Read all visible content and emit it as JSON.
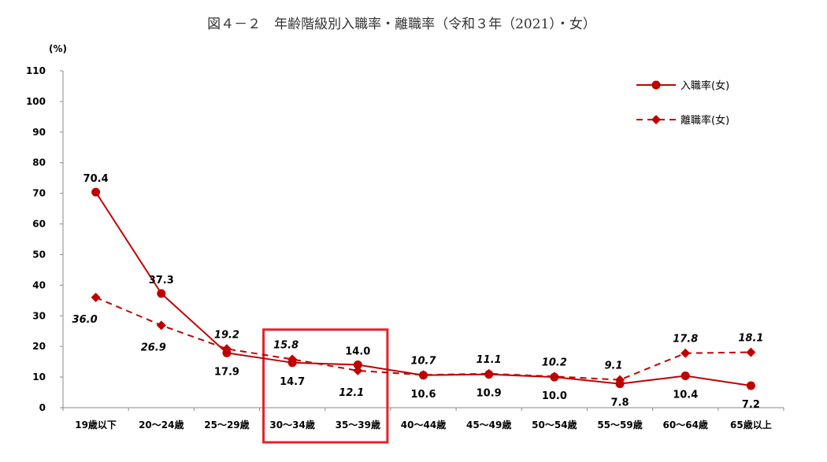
{
  "chart_data": {
    "type": "line",
    "title": "図４－２　年齢階級別入職率・離職率（令和３年（2021）・女）",
    "ylabel": "(%)",
    "xlabel": "",
    "ylim": [
      0,
      110
    ],
    "yticks": [
      0,
      10,
      20,
      30,
      40,
      50,
      60,
      70,
      80,
      90,
      100,
      110
    ],
    "grid": false,
    "legend_position": "top-right",
    "categories": [
      "19歳以下",
      "20～24歳",
      "25～29歳",
      "30～34歳",
      "35～39歳",
      "40～44歳",
      "45～49歳",
      "50～54歳",
      "55～59歳",
      "60～64歳",
      "65歳以上"
    ],
    "series": [
      {
        "name": "入職率(女)",
        "style": "solid-circle",
        "color": "#c00000",
        "values": [
          70.4,
          37.3,
          17.9,
          14.7,
          14.0,
          10.6,
          10.9,
          10.0,
          7.8,
          10.4,
          7.2
        ],
        "labels": [
          "70.4",
          "37.3",
          "17.9",
          "14.7",
          "14.0",
          "10.6",
          "10.9",
          "10.0",
          "7.8",
          "10.4",
          "7.2"
        ]
      },
      {
        "name": "離職率(女)",
        "style": "dashed-diamond",
        "color": "#c00000",
        "values": [
          36.0,
          26.9,
          19.2,
          15.8,
          12.1,
          10.7,
          11.1,
          10.2,
          9.1,
          17.8,
          18.1
        ],
        "labels": [
          "36.0",
          "26.9",
          "19.2",
          "15.8",
          "12.1",
          "10.7",
          "11.1",
          "10.2",
          "9.1",
          "17.8",
          "18.1"
        ]
      }
    ],
    "highlight": {
      "categories": [
        "30～34歳",
        "35～39歳"
      ],
      "color": "#e8202a"
    }
  }
}
